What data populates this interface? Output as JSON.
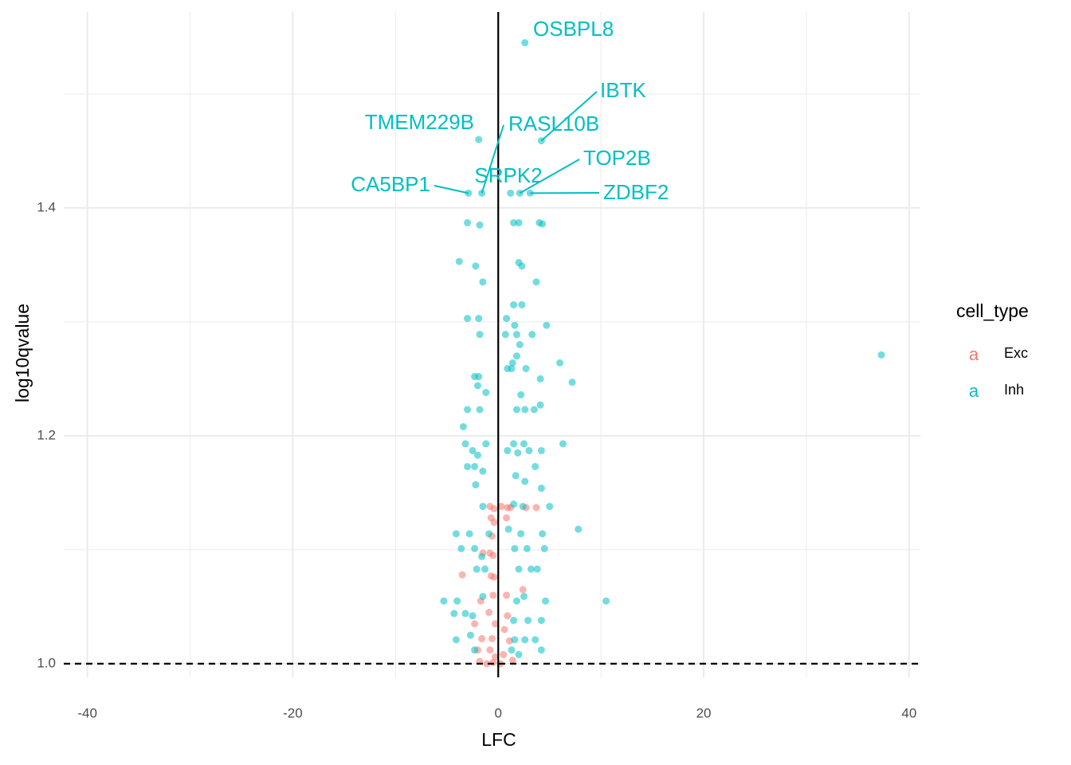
{
  "chart_data": {
    "type": "scatter",
    "x_label": "LFC",
    "y_label": "log10qvalue",
    "xlim": [
      -42.3,
      41.1
    ],
    "ylim": [
      0.988,
      1.572
    ],
    "xticks": [
      -40,
      -20,
      0,
      20,
      40
    ],
    "yticks": [
      {
        "value": 1.0,
        "label": "1.0"
      },
      {
        "value": 1.2,
        "label": "1.2"
      },
      {
        "value": 1.4,
        "label": "1.4"
      }
    ],
    "x_minor_grid": [
      -30,
      -10,
      10,
      30
    ],
    "y_minor_grid": [
      1.1,
      1.3,
      1.5
    ],
    "grid": true,
    "vline": 0,
    "hline": 1,
    "legend_title": "cell_type",
    "legend_position": "right",
    "series": [
      {
        "name": "Exc",
        "color": "#F8766D",
        "points": [
          [
            -0.8,
            1.138
          ],
          [
            -0.4,
            1.136
          ],
          [
            0.3,
            1.138
          ],
          [
            0.9,
            1.137
          ],
          [
            1.2,
            1.137
          ],
          [
            2.7,
            1.137
          ],
          [
            3.7,
            1.137
          ],
          [
            -0.7,
            1.128
          ],
          [
            -0.4,
            1.124
          ],
          [
            0.8,
            1.128
          ],
          [
            -0.6,
            1.112
          ],
          [
            -0.8,
            1.097
          ],
          [
            -0.5,
            1.095
          ],
          [
            -1.5,
            1.097
          ],
          [
            -3.5,
            1.078
          ],
          [
            -0.7,
            1.077
          ],
          [
            -0.4,
            1.076
          ],
          [
            -0.5,
            1.06
          ],
          [
            0.8,
            1.06
          ],
          [
            2.4,
            1.065
          ],
          [
            -1.7,
            1.055
          ],
          [
            -0.9,
            1.045
          ],
          [
            0.9,
            1.042
          ],
          [
            -0.3,
            1.035
          ],
          [
            -2.3,
            1.035
          ],
          [
            0.6,
            1.03
          ],
          [
            -1.6,
            1.022
          ],
          [
            -0.6,
            1.022
          ],
          [
            1.1,
            1.02
          ],
          [
            -2,
            1.012
          ],
          [
            -0.8,
            1.012
          ],
          [
            -0.3,
            1.006
          ],
          [
            0.5,
            1.008
          ],
          [
            -1.8,
            1.002
          ],
          [
            -0.5,
            1.001
          ],
          [
            0.2,
            1.0
          ],
          [
            1.4,
            1.003
          ],
          [
            -1.1,
            1.0
          ]
        ]
      },
      {
        "name": "Inh",
        "color": "#00BFC4",
        "points": [
          [
            37.3,
            1.271
          ],
          [
            -3,
            1.387
          ],
          [
            -1.8,
            1.385
          ],
          [
            1.5,
            1.387
          ],
          [
            2,
            1.387
          ],
          [
            4,
            1.387
          ],
          [
            4.3,
            1.386
          ],
          [
            -3.8,
            1.353
          ],
          [
            -2.2,
            1.349
          ],
          [
            2,
            1.352
          ],
          [
            2.3,
            1.349
          ],
          [
            3.7,
            1.335
          ],
          [
            -1.5,
            1.335
          ],
          [
            1.5,
            1.315
          ],
          [
            2.3,
            1.315
          ],
          [
            -3,
            1.303
          ],
          [
            -1.9,
            1.303
          ],
          [
            0.8,
            1.303
          ],
          [
            1.6,
            1.297
          ],
          [
            4.7,
            1.297
          ],
          [
            -1.8,
            1.289
          ],
          [
            0.7,
            1.289
          ],
          [
            1.8,
            1.289
          ],
          [
            3.3,
            1.289
          ],
          [
            2.1,
            1.28
          ],
          [
            1.8,
            1.27
          ],
          [
            6,
            1.264
          ],
          [
            1.4,
            1.264
          ],
          [
            -2.3,
            1.252
          ],
          [
            -1.9,
            1.252
          ],
          [
            0.9,
            1.259
          ],
          [
            1.3,
            1.259
          ],
          [
            2.7,
            1.259
          ],
          [
            4.1,
            1.25
          ],
          [
            7.2,
            1.247
          ],
          [
            -2,
            1.244
          ],
          [
            -1.2,
            1.238
          ],
          [
            2.2,
            1.236
          ],
          [
            -3,
            1.223
          ],
          [
            -1.8,
            1.223
          ],
          [
            1.8,
            1.223
          ],
          [
            2.6,
            1.223
          ],
          [
            3.5,
            1.223
          ],
          [
            4.1,
            1.227
          ],
          [
            -3.4,
            1.208
          ],
          [
            -3.2,
            1.193
          ],
          [
            -1.2,
            1.193
          ],
          [
            1.5,
            1.193
          ],
          [
            2.5,
            1.193
          ],
          [
            6.3,
            1.193
          ],
          [
            -2.5,
            1.187
          ],
          [
            -2,
            1.183
          ],
          [
            0.9,
            1.187
          ],
          [
            1.9,
            1.185
          ],
          [
            3,
            1.187
          ],
          [
            4.2,
            1.187
          ],
          [
            -3,
            1.173
          ],
          [
            -2.3,
            1.173
          ],
          [
            3.6,
            1.173
          ],
          [
            -1.5,
            1.169
          ],
          [
            1.7,
            1.165
          ],
          [
            2.6,
            1.16
          ],
          [
            -2.2,
            1.157
          ],
          [
            4.2,
            1.154
          ],
          [
            1.5,
            1.14
          ],
          [
            -1.5,
            1.138
          ],
          [
            5,
            1.138
          ],
          [
            2.4,
            1.138
          ],
          [
            -4.1,
            1.114
          ],
          [
            -2.8,
            1.114
          ],
          [
            -0.9,
            1.114
          ],
          [
            1,
            1.118
          ],
          [
            2.2,
            1.114
          ],
          [
            4.3,
            1.114
          ],
          [
            7.8,
            1.118
          ],
          [
            -1.6,
            1.094
          ],
          [
            -3.6,
            1.101
          ],
          [
            -2.3,
            1.101
          ],
          [
            1.6,
            1.101
          ],
          [
            2.8,
            1.101
          ],
          [
            4.5,
            1.101
          ],
          [
            -2.1,
            1.083
          ],
          [
            -1.3,
            1.083
          ],
          [
            2,
            1.083
          ],
          [
            3.2,
            1.083
          ],
          [
            3.8,
            1.083
          ],
          [
            -5.3,
            1.055
          ],
          [
            -4,
            1.055
          ],
          [
            -1.5,
            1.059
          ],
          [
            1.8,
            1.055
          ],
          [
            2.5,
            1.059
          ],
          [
            4.6,
            1.055
          ],
          [
            10.5,
            1.055
          ],
          [
            -4.3,
            1.044
          ],
          [
            -3.2,
            1.044
          ],
          [
            -2.5,
            1.042
          ],
          [
            1.5,
            1.038
          ],
          [
            2.9,
            1.038
          ],
          [
            4.2,
            1.038
          ],
          [
            -4.1,
            1.021
          ],
          [
            -2.7,
            1.025
          ],
          [
            1.6,
            1.021
          ],
          [
            2.6,
            1.021
          ],
          [
            3.6,
            1.021
          ],
          [
            -2.3,
            1.012
          ],
          [
            1.3,
            1.012
          ],
          [
            4.2,
            1.012
          ],
          [
            2,
            1.008
          ]
        ]
      }
    ],
    "annotations": [
      {
        "text": "OSBPL8",
        "x": 2.6,
        "y": 1.545,
        "color": "#00BFC4"
      },
      {
        "text": "IBTK",
        "x": 4.2,
        "y": 1.459,
        "color": "#00BFC4"
      },
      {
        "text": "TMEM229B",
        "x": -1.9,
        "y": 1.46,
        "color": "#00BFC4"
      },
      {
        "text": "RASL10B",
        "x": -1.6,
        "y": 1.413,
        "color": "#00BFC4"
      },
      {
        "text": "CA5BP1",
        "x": -2.9,
        "y": 1.413,
        "color": "#00BFC4"
      },
      {
        "text": "SRPK2",
        "x": 1.2,
        "y": 1.413,
        "color": "#00BFC4"
      },
      {
        "text": "TOP2B",
        "x": 2.1,
        "y": 1.413,
        "color": "#00BFC4"
      },
      {
        "text": "ZDBF2",
        "x": 3.1,
        "y": 1.413,
        "color": "#00BFC4"
      }
    ]
  }
}
